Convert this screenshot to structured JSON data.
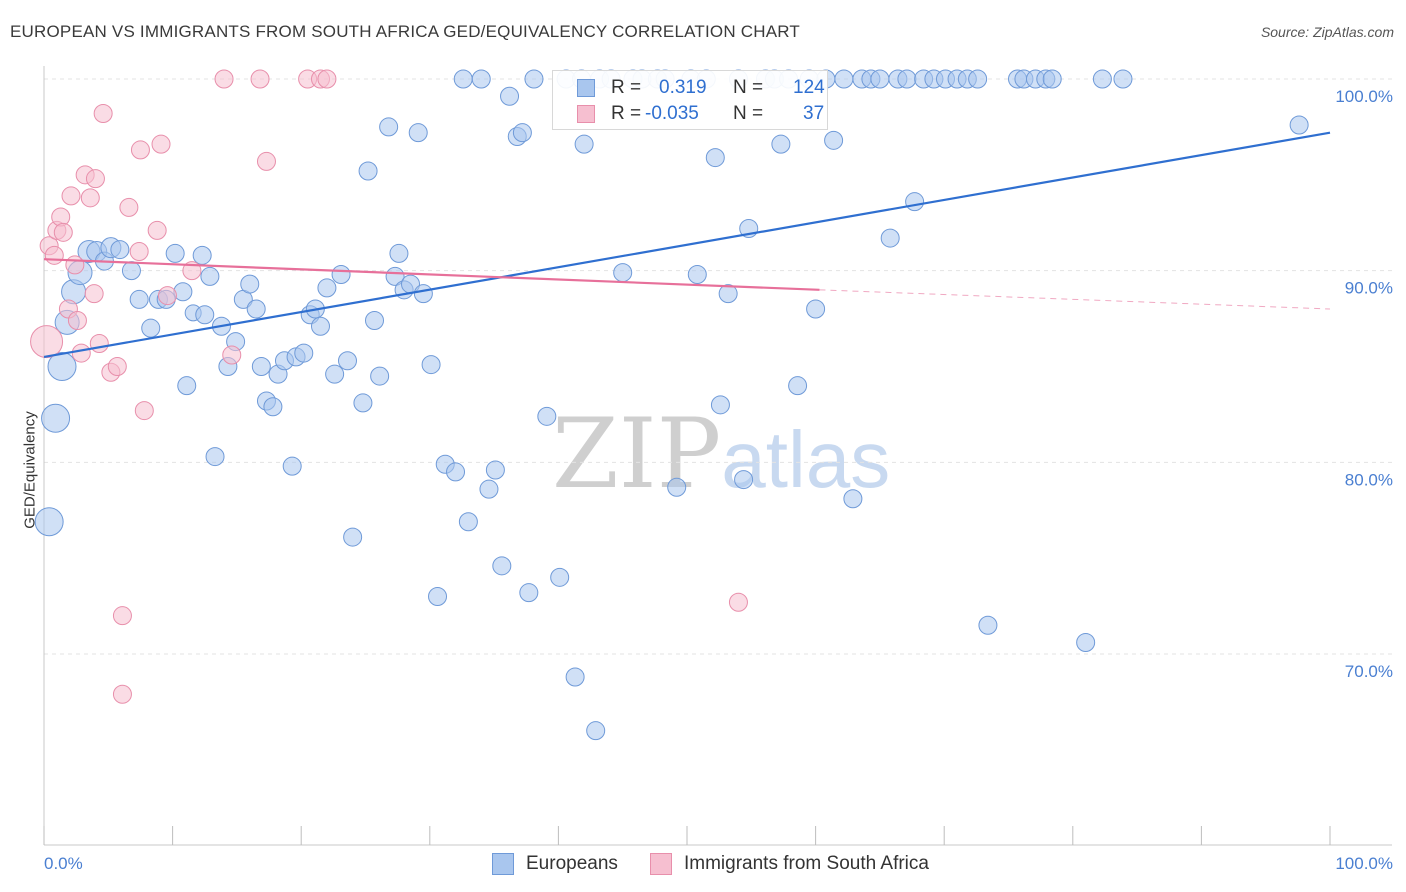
{
  "header": {
    "title": "EUROPEAN VS IMMIGRANTS FROM SOUTH AFRICA GED/EQUIVALENCY CORRELATION CHART",
    "source": "Source: ZipAtlas.com"
  },
  "watermark": {
    "zip": "ZIP",
    "atlas": "atlas"
  },
  "legend": {
    "rows": [
      {
        "r_label": "R =",
        "r_value": "0.319",
        "n_label": "N =",
        "n_value": "124"
      },
      {
        "r_label": "R =",
        "r_value": "-0.035",
        "n_label": "N =",
        "n_value": "37"
      }
    ]
  },
  "bottom_legend": {
    "series1": "Europeans",
    "series2": "Immigrants from South Africa"
  },
  "colors": {
    "blue_fill": "#a9c6ee",
    "blue_stroke": "#6f9ad8",
    "blue_line": "#2f6fd0",
    "pink_fill": "#f6bfd0",
    "pink_stroke": "#e88fab",
    "pink_line": "#e7709a",
    "tick_text": "#4a7fd1",
    "grid": "#e3e3e3"
  },
  "chart_data": {
    "type": "scatter",
    "title": "EUROPEAN VS IMMIGRANTS FROM SOUTH AFRICA GED/EQUIVALENCY CORRELATION CHART",
    "xlabel": "",
    "ylabel": "GED/Equivalency",
    "xlim": [
      0,
      100
    ],
    "ylim": [
      60,
      100
    ],
    "x_tick_labels": [
      "0.0%",
      "100.0%"
    ],
    "y_ticks": [
      70,
      80,
      90,
      100
    ],
    "y_tick_labels": [
      "70.0%",
      "80.0%",
      "90.0%",
      "100.0%"
    ],
    "grid": true,
    "legend_position": "top-center",
    "series": [
      {
        "name": "Europeans",
        "color": "#a9c6ee",
        "trend": {
          "x": [
            0,
            100
          ],
          "y": [
            85.5,
            97.2
          ]
        },
        "points": [
          [
            0.4,
            76.9,
            14
          ],
          [
            0.9,
            82.3,
            14
          ],
          [
            1.4,
            85.0,
            14
          ],
          [
            1.8,
            87.3,
            12
          ],
          [
            2.3,
            88.9,
            12
          ],
          [
            2.8,
            89.9,
            12
          ],
          [
            3.5,
            91.0,
            11
          ],
          [
            4.1,
            91.0,
            10
          ],
          [
            4.7,
            90.5,
            9
          ],
          [
            5.2,
            91.2,
            10
          ],
          [
            5.9,
            91.1,
            9
          ],
          [
            6.8,
            90.0,
            9
          ],
          [
            7.4,
            88.5,
            9
          ],
          [
            8.3,
            87.0,
            9
          ],
          [
            8.9,
            88.5,
            9
          ],
          [
            9.5,
            88.5,
            9
          ],
          [
            10.2,
            90.9,
            9
          ],
          [
            10.8,
            88.9,
            9
          ],
          [
            11.1,
            84.0,
            9
          ],
          [
            11.6,
            87.8,
            8
          ],
          [
            12.3,
            90.8,
            9
          ],
          [
            12.5,
            87.7,
            9
          ],
          [
            12.9,
            89.7,
            9
          ],
          [
            13.3,
            80.3,
            9
          ],
          [
            13.8,
            87.1,
            9
          ],
          [
            14.3,
            85.0,
            9
          ],
          [
            14.9,
            86.3,
            9
          ],
          [
            15.5,
            88.5,
            9
          ],
          [
            16.0,
            89.3,
            9
          ],
          [
            16.5,
            88.0,
            9
          ],
          [
            16.9,
            85.0,
            9
          ],
          [
            17.3,
            83.2,
            9
          ],
          [
            17.8,
            82.9,
            9
          ],
          [
            18.2,
            84.6,
            9
          ],
          [
            18.7,
            85.3,
            9
          ],
          [
            19.3,
            79.8,
            9
          ],
          [
            19.6,
            85.5,
            9
          ],
          [
            20.2,
            85.7,
            9
          ],
          [
            20.7,
            87.7,
            9
          ],
          [
            21.1,
            88.0,
            9
          ],
          [
            21.5,
            87.1,
            9
          ],
          [
            22.0,
            89.1,
            9
          ],
          [
            22.6,
            84.6,
            9
          ],
          [
            23.1,
            89.8,
            9
          ],
          [
            23.6,
            85.3,
            9
          ],
          [
            24.0,
            76.1,
            9
          ],
          [
            24.8,
            83.1,
            9
          ],
          [
            25.2,
            95.2,
            9
          ],
          [
            25.7,
            87.4,
            9
          ],
          [
            26.1,
            84.5,
            9
          ],
          [
            26.8,
            97.5,
            9
          ],
          [
            27.3,
            89.7,
            9
          ],
          [
            27.6,
            90.9,
            9
          ],
          [
            28.0,
            89.0,
            9
          ],
          [
            28.5,
            89.3,
            9
          ],
          [
            29.1,
            97.2,
            9
          ],
          [
            29.5,
            88.8,
            9
          ],
          [
            30.1,
            85.1,
            9
          ],
          [
            30.6,
            73.0,
            9
          ],
          [
            31.2,
            79.9,
            9
          ],
          [
            32.0,
            79.5,
            9
          ],
          [
            32.6,
            100.0,
            9
          ],
          [
            33.0,
            76.9,
            9
          ],
          [
            34.0,
            100.0,
            9
          ],
          [
            34.6,
            78.6,
            9
          ],
          [
            35.1,
            79.6,
            9
          ],
          [
            35.6,
            74.6,
            9
          ],
          [
            36.2,
            99.1,
            9
          ],
          [
            36.8,
            97.0,
            9
          ],
          [
            37.2,
            97.2,
            9
          ],
          [
            37.7,
            73.2,
            9
          ],
          [
            38.1,
            100.0,
            9
          ],
          [
            39.1,
            82.4,
            9
          ],
          [
            40.1,
            74.0,
            9
          ],
          [
            40.6,
            100.0,
            9
          ],
          [
            41.3,
            68.8,
            9
          ],
          [
            41.8,
            100.0,
            9
          ],
          [
            42.0,
            96.6,
            9
          ],
          [
            42.9,
            66.0,
            9
          ],
          [
            43.2,
            100.0,
            9
          ],
          [
            44.1,
            100.0,
            9
          ],
          [
            45.0,
            89.9,
            9
          ],
          [
            45.8,
            100.0,
            9
          ],
          [
            46.5,
            100.0,
            9
          ],
          [
            47.7,
            100.0,
            9
          ],
          [
            48.3,
            100.0,
            9
          ],
          [
            49.2,
            78.7,
            9
          ],
          [
            50.3,
            100.0,
            9
          ],
          [
            50.8,
            89.8,
            9
          ],
          [
            51.5,
            100.0,
            9
          ],
          [
            52.2,
            95.9,
            9
          ],
          [
            52.6,
            83.0,
            9
          ],
          [
            53.2,
            88.8,
            9
          ],
          [
            54.0,
            100.0,
            9
          ],
          [
            54.4,
            79.1,
            9
          ],
          [
            54.8,
            92.2,
            9
          ],
          [
            56.1,
            100.0,
            9
          ],
          [
            56.8,
            100.0,
            9
          ],
          [
            57.3,
            96.6,
            9
          ],
          [
            57.9,
            100.0,
            9
          ],
          [
            58.6,
            84.0,
            9
          ],
          [
            59.5,
            100.0,
            9
          ],
          [
            60.0,
            88.0,
            9
          ],
          [
            60.8,
            100.0,
            9
          ],
          [
            61.4,
            96.8,
            9
          ],
          [
            62.2,
            100.0,
            9
          ],
          [
            62.9,
            78.1,
            9
          ],
          [
            63.6,
            100.0,
            9
          ],
          [
            64.3,
            100.0,
            9
          ],
          [
            65.0,
            100.0,
            9
          ],
          [
            65.8,
            91.7,
            9
          ],
          [
            66.4,
            100.0,
            9
          ],
          [
            67.1,
            100.0,
            9
          ],
          [
            67.7,
            93.6,
            9
          ],
          [
            68.4,
            100.0,
            9
          ],
          [
            69.2,
            100.0,
            9
          ],
          [
            70.1,
            100.0,
            9
          ],
          [
            71.0,
            100.0,
            9
          ],
          [
            71.8,
            100.0,
            9
          ],
          [
            72.6,
            100.0,
            9
          ],
          [
            73.4,
            71.5,
            9
          ],
          [
            75.7,
            100.0,
            9
          ],
          [
            76.2,
            100.0,
            9
          ],
          [
            77.1,
            100.0,
            9
          ],
          [
            77.9,
            100.0,
            9
          ],
          [
            78.4,
            100.0,
            9
          ],
          [
            81.0,
            70.6,
            9
          ],
          [
            82.3,
            100.0,
            9
          ],
          [
            83.9,
            100.0,
            9
          ],
          [
            97.6,
            97.6,
            9
          ]
        ]
      },
      {
        "name": "Immigrants from South Africa",
        "color": "#f6bfd0",
        "trend": {
          "x": [
            0,
            60.3
          ],
          "y": [
            90.6,
            89.0
          ],
          "dash_to": [
            100,
            88.0
          ]
        },
        "points": [
          [
            0.2,
            86.3,
            16
          ],
          [
            0.4,
            91.3,
            9
          ],
          [
            0.8,
            90.8,
            9
          ],
          [
            1.0,
            92.1,
            9
          ],
          [
            1.3,
            92.8,
            9
          ],
          [
            1.5,
            92.0,
            9
          ],
          [
            1.9,
            88.0,
            9
          ],
          [
            2.1,
            93.9,
            9
          ],
          [
            2.4,
            90.3,
            9
          ],
          [
            2.6,
            87.4,
            9
          ],
          [
            2.9,
            85.7,
            9
          ],
          [
            3.2,
            95.0,
            9
          ],
          [
            3.6,
            93.8,
            9
          ],
          [
            3.9,
            88.8,
            9
          ],
          [
            4.0,
            94.8,
            9
          ],
          [
            4.3,
            86.2,
            9
          ],
          [
            4.6,
            98.2,
            9
          ],
          [
            5.2,
            84.7,
            9
          ],
          [
            5.7,
            85.0,
            9
          ],
          [
            6.1,
            72.0,
            9
          ],
          [
            6.1,
            67.9,
            9
          ],
          [
            6.6,
            93.3,
            9
          ],
          [
            7.4,
            91.0,
            9
          ],
          [
            7.5,
            96.3,
            9
          ],
          [
            7.8,
            82.7,
            9
          ],
          [
            8.8,
            92.1,
            9
          ],
          [
            9.1,
            96.6,
            9
          ],
          [
            9.6,
            88.7,
            9
          ],
          [
            11.5,
            90.0,
            9
          ],
          [
            14.0,
            100.0,
            9
          ],
          [
            14.6,
            85.6,
            9
          ],
          [
            16.8,
            100.0,
            9
          ],
          [
            17.3,
            95.7,
            9
          ],
          [
            20.5,
            100.0,
            9
          ],
          [
            21.5,
            100.0,
            9
          ],
          [
            22.0,
            100.0,
            9
          ],
          [
            54.0,
            72.7,
            9
          ]
        ]
      }
    ]
  }
}
